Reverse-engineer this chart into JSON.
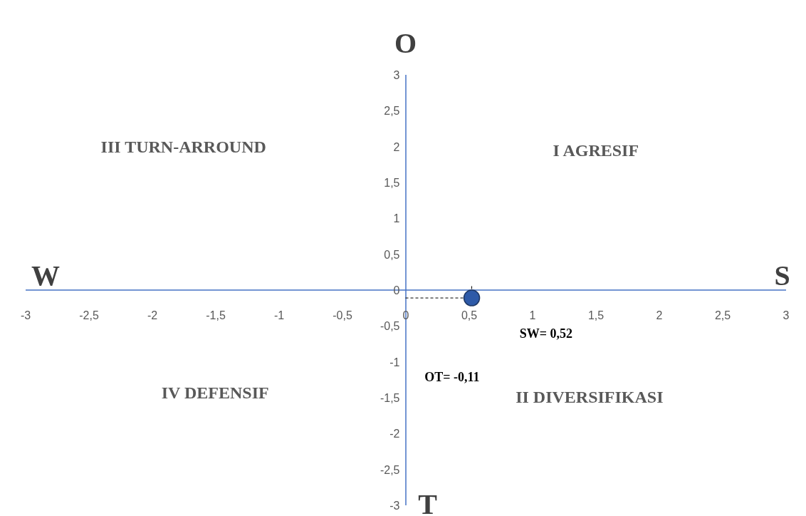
{
  "chart_data": {
    "type": "scatter",
    "x": [
      0.52
    ],
    "values": [
      -0.11
    ],
    "color": "#2e5aa8",
    "marker": "circle",
    "grid": false,
    "xlim": [
      -3,
      3
    ],
    "ylim": [
      -3,
      3
    ],
    "xticks": [
      -3,
      {
        "value": -2.5,
        "label": "-2,5"
      },
      -2,
      {
        "value": -1.5,
        "label": "-1,5"
      },
      -1,
      {
        "value": -0.5,
        "label": "-0,5"
      },
      0,
      {
        "value": 0.5,
        "label": "0,5"
      },
      1,
      {
        "value": 1.5,
        "label": "1,5"
      },
      2,
      {
        "value": 2.5,
        "label": "2,5"
      },
      3
    ],
    "yticks": [
      -3,
      {
        "value": -2.5,
        "label": "-2,5"
      },
      -2,
      {
        "value": -1.5,
        "label": "-1,5"
      },
      -1,
      {
        "value": -0.5,
        "label": "-0,5"
      },
      0,
      {
        "value": 0.5,
        "label": "0,5"
      },
      1,
      {
        "value": 1.5,
        "label": "1,5"
      },
      2,
      {
        "value": 2.5,
        "label": "2,5"
      },
      3
    ],
    "annotations": [
      "W",
      "S",
      "O",
      "T",
      "III TURN-ARROUND",
      "I AGRESIF",
      "IV DEFENSIF",
      "II DIVERSIFIKASI",
      "SW= 0,52",
      "OT= -0,11"
    ]
  }
}
